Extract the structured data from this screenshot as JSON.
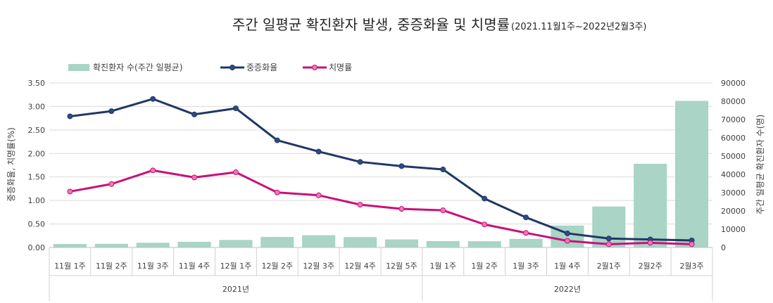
{
  "chart_data": {
    "type": "bar+line",
    "title": "주간 일평균 확진환자 발생, 중증화율 및 치명률",
    "subtitle": "(2021.11월1주~2022년2월3주)",
    "categories": [
      "11월 1주",
      "11월 2주",
      "11월 3주",
      "11월 4주",
      "12월 1주",
      "12월 2주",
      "12월 3주",
      "12월 4주",
      "12월 5주",
      "1월 1주",
      "1월 2주",
      "1월 3주",
      "1월 4주",
      "2월1주",
      "2월2주",
      "2월3주"
    ],
    "year_groups": [
      {
        "label": "2021년",
        "start": 0,
        "end": 8
      },
      {
        "label": "2022년",
        "start": 9,
        "end": 15
      }
    ],
    "series": [
      {
        "name": "확진환자 수(주간 일평균)",
        "type": "bar",
        "axis": "right",
        "color": "#a9d4c6",
        "values": [
          1900,
          2000,
          2600,
          3100,
          4100,
          5800,
          6700,
          5700,
          4400,
          3500,
          3400,
          4700,
          12000,
          22400,
          45800,
          80200
        ]
      },
      {
        "name": "중증화율",
        "type": "line",
        "axis": "left",
        "color": "#1f3864",
        "values": [
          2.79,
          2.9,
          3.16,
          2.83,
          2.96,
          2.28,
          2.04,
          1.82,
          1.73,
          1.66,
          1.04,
          0.64,
          0.3,
          0.19,
          0.17,
          0.15
        ]
      },
      {
        "name": "치명률",
        "type": "line",
        "axis": "left",
        "color": "#c8117a",
        "values": [
          1.19,
          1.35,
          1.64,
          1.49,
          1.6,
          1.17,
          1.11,
          0.91,
          0.82,
          0.79,
          0.49,
          0.31,
          0.14,
          0.07,
          0.1,
          0.07
        ]
      }
    ],
    "left_axis": {
      "label": "중증화율, 치명률(%)",
      "min": 0,
      "max": 3.5,
      "step": 0.5,
      "ticks": [
        "0.00",
        "0.50",
        "1.00",
        "1.50",
        "2.00",
        "2.50",
        "3.00",
        "3.50"
      ]
    },
    "right_axis": {
      "label": "주간 일평균 확진환자 수(명)",
      "min": 0,
      "max": 90000,
      "step": 10000,
      "ticks": [
        "0",
        "10000",
        "20000",
        "30000",
        "40000",
        "50000",
        "60000",
        "70000",
        "80000",
        "90000"
      ]
    },
    "grid": true,
    "legend": "top-left"
  }
}
